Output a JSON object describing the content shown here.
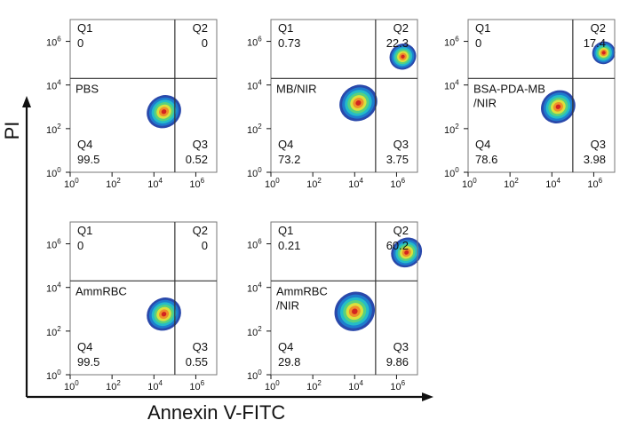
{
  "chart_data": [
    {
      "type": "scatter",
      "panel": "PBS",
      "label_lines": [
        "PBS"
      ],
      "quadrants": {
        "Q1": {
          "label": "Q1",
          "value": "0"
        },
        "Q2": {
          "label": "Q2",
          "value": "0"
        },
        "Q3": {
          "label": "Q3",
          "value": "0.52"
        },
        "Q4": {
          "label": "Q4",
          "value": "99.5"
        }
      },
      "gates": {
        "x": 100000,
        "y": 20000
      },
      "populations": [
        {
          "x": 30000,
          "y": 600,
          "spread": 1.0,
          "density": 1.0
        }
      ],
      "xlim": [
        1,
        10000000
      ],
      "ylim": [
        1,
        10000000
      ],
      "log": true
    },
    {
      "type": "scatter",
      "panel": "MB/NIR",
      "label_lines": [
        "MB/NIR"
      ],
      "quadrants": {
        "Q1": {
          "label": "Q1",
          "value": "0.73"
        },
        "Q2": {
          "label": "Q2",
          "value": "22.3"
        },
        "Q3": {
          "label": "Q3",
          "value": "3.75"
        },
        "Q4": {
          "label": "Q4",
          "value": "73.2"
        }
      },
      "gates": {
        "x": 100000,
        "y": 20000
      },
      "populations": [
        {
          "x": 15000,
          "y": 1500,
          "spread": 1.1,
          "density": 1.0
        },
        {
          "x": 2000000,
          "y": 200000,
          "spread": 0.8,
          "density": 0.7
        }
      ],
      "xlim": [
        1,
        10000000
      ],
      "ylim": [
        1,
        10000000
      ],
      "log": true
    },
    {
      "type": "scatter",
      "panel": "BSA-PDA-MB/NIR",
      "label_lines": [
        "BSA-PDA-MB",
        "/NIR"
      ],
      "quadrants": {
        "Q1": {
          "label": "Q1",
          "value": "0"
        },
        "Q2": {
          "label": "Q2",
          "value": "17.4"
        },
        "Q3": {
          "label": "Q3",
          "value": "3.98"
        },
        "Q4": {
          "label": "Q4",
          "value": "78.6"
        }
      },
      "gates": {
        "x": 100000,
        "y": 20000
      },
      "populations": [
        {
          "x": 20000,
          "y": 1000,
          "spread": 1.0,
          "density": 1.0
        },
        {
          "x": 3000000,
          "y": 300000,
          "spread": 0.7,
          "density": 0.6
        }
      ],
      "xlim": [
        1,
        10000000
      ],
      "ylim": [
        1,
        10000000
      ],
      "log": true
    },
    {
      "type": "scatter",
      "panel": "AmmRBC",
      "label_lines": [
        "AmmRBC"
      ],
      "quadrants": {
        "Q1": {
          "label": "Q1",
          "value": "0"
        },
        "Q2": {
          "label": "Q2",
          "value": "0"
        },
        "Q3": {
          "label": "Q3",
          "value": "0.55"
        },
        "Q4": {
          "label": "Q4",
          "value": "99.5"
        }
      },
      "gates": {
        "x": 100000,
        "y": 20000
      },
      "populations": [
        {
          "x": 30000,
          "y": 600,
          "spread": 1.0,
          "density": 1.0
        }
      ],
      "xlim": [
        1,
        10000000
      ],
      "ylim": [
        1,
        10000000
      ],
      "log": true
    },
    {
      "type": "scatter",
      "panel": "AmmRBC/NIR",
      "label_lines": [
        "AmmRBC",
        "/NIR"
      ],
      "quadrants": {
        "Q1": {
          "label": "Q1",
          "value": "0.21"
        },
        "Q2": {
          "label": "Q2",
          "value": "60.2"
        },
        "Q3": {
          "label": "Q3",
          "value": "9.86"
        },
        "Q4": {
          "label": "Q4",
          "value": "29.8"
        }
      },
      "gates": {
        "x": 100000,
        "y": 20000
      },
      "populations": [
        {
          "x": 10000,
          "y": 800,
          "spread": 1.2,
          "density": 0.8
        },
        {
          "x": 3000000,
          "y": 400000,
          "spread": 0.9,
          "density": 1.0
        }
      ],
      "xlim": [
        1,
        10000000
      ],
      "ylim": [
        1,
        10000000
      ],
      "log": true
    }
  ],
  "xlabel": "Annexin V-FITC",
  "ylabel": "PI",
  "ticks": {
    "x": [
      "0",
      "2",
      "4",
      "6"
    ],
    "y": [
      "0",
      "2",
      "4",
      "6"
    ],
    "base": "10"
  },
  "colors": {
    "axis": "#111111",
    "gate": "#333333",
    "density": [
      "#1f3fa6",
      "#1e7fd0",
      "#25c0c7",
      "#5cd27a",
      "#e3e03a",
      "#f08a2a",
      "#d02020"
    ]
  }
}
